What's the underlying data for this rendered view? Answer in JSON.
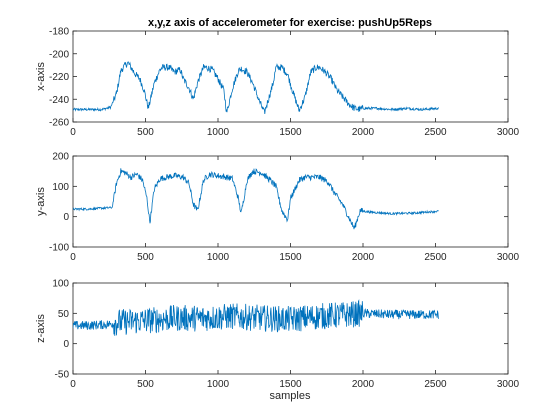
{
  "title": "x,y,z axis of accelerometer for exercise: pushUp5Reps",
  "color": "#0072bd",
  "chart_data": [
    {
      "type": "line",
      "ylabel": "x-axis",
      "xlim": [
        0,
        3000
      ],
      "ylim": [
        -260,
        -180
      ],
      "xticks": [
        0,
        500,
        1000,
        1500,
        2000,
        2500,
        3000
      ],
      "yticks": [
        -260,
        -240,
        -220,
        -200,
        -180
      ],
      "baseline": -248,
      "noise": 3,
      "x": [
        0,
        100,
        200,
        260,
        300,
        330,
        360,
        380,
        400,
        430,
        460,
        490,
        520,
        560,
        600,
        620,
        660,
        700,
        740,
        760,
        800,
        830,
        860,
        900,
        920,
        960,
        1000,
        1040,
        1060,
        1100,
        1140,
        1160,
        1200,
        1240,
        1280,
        1320,
        1380,
        1400,
        1440,
        1480,
        1520,
        1560,
        1600,
        1640,
        1680,
        1700,
        1740,
        1780,
        1820,
        1860,
        1900,
        1940,
        1980,
        2000,
        2100,
        2200,
        2300,
        2400,
        2520
      ],
      "y": [
        -249,
        -249,
        -249,
        -247,
        -235,
        -215,
        -210,
        -208,
        -212,
        -218,
        -222,
        -232,
        -248,
        -226,
        -214,
        -212,
        -212,
        -216,
        -214,
        -222,
        -230,
        -240,
        -225,
        -212,
        -212,
        -214,
        -222,
        -232,
        -252,
        -230,
        -215,
        -213,
        -216,
        -226,
        -240,
        -252,
        -226,
        -212,
        -212,
        -218,
        -235,
        -250,
        -238,
        -216,
        -212,
        -212,
        -216,
        -222,
        -232,
        -238,
        -244,
        -248,
        -249,
        -248,
        -248,
        -249,
        -248,
        -249,
        -248
      ]
    },
    {
      "type": "line",
      "ylabel": "y-axis",
      "xlim": [
        0,
        3000
      ],
      "ylim": [
        -100,
        200
      ],
      "xticks": [
        0,
        500,
        1000,
        1500,
        2000,
        2500,
        3000
      ],
      "yticks": [
        -100,
        0,
        100,
        200
      ],
      "baseline": 25,
      "noise": 10,
      "x": [
        0,
        100,
        200,
        270,
        300,
        330,
        360,
        400,
        440,
        480,
        510,
        530,
        560,
        600,
        640,
        700,
        760,
        800,
        830,
        860,
        900,
        940,
        1000,
        1060,
        1100,
        1140,
        1160,
        1200,
        1240,
        1300,
        1360,
        1400,
        1440,
        1480,
        1500,
        1560,
        1600,
        1700,
        1760,
        1800,
        1860,
        1900,
        1940,
        1980,
        2050,
        2200,
        2350,
        2520
      ],
      "y": [
        25,
        25,
        28,
        30,
        110,
        150,
        145,
        130,
        140,
        120,
        60,
        -20,
        90,
        125,
        130,
        135,
        130,
        110,
        40,
        20,
        120,
        140,
        135,
        130,
        125,
        60,
        10,
        120,
        150,
        145,
        120,
        100,
        20,
        -10,
        60,
        120,
        130,
        130,
        115,
        80,
        40,
        0,
        -40,
        20,
        15,
        10,
        12,
        18
      ]
    },
    {
      "type": "line",
      "ylabel": "z-axis",
      "xlabel": "samples",
      "xlim": [
        0,
        3000
      ],
      "ylim": [
        -50,
        100
      ],
      "xticks": [
        0,
        500,
        1000,
        1500,
        2000,
        2500,
        3000
      ],
      "yticks": [
        -50,
        0,
        50,
        100
      ],
      "baseline": 30,
      "noise": 22,
      "x": [
        0,
        100,
        250,
        300,
        500,
        700,
        900,
        1100,
        1300,
        1500,
        1700,
        1900,
        2000,
        2200,
        2400,
        2520
      ],
      "y": [
        30,
        30,
        32,
        35,
        38,
        42,
        42,
        45,
        42,
        40,
        45,
        48,
        50,
        48,
        48,
        48
      ]
    }
  ]
}
